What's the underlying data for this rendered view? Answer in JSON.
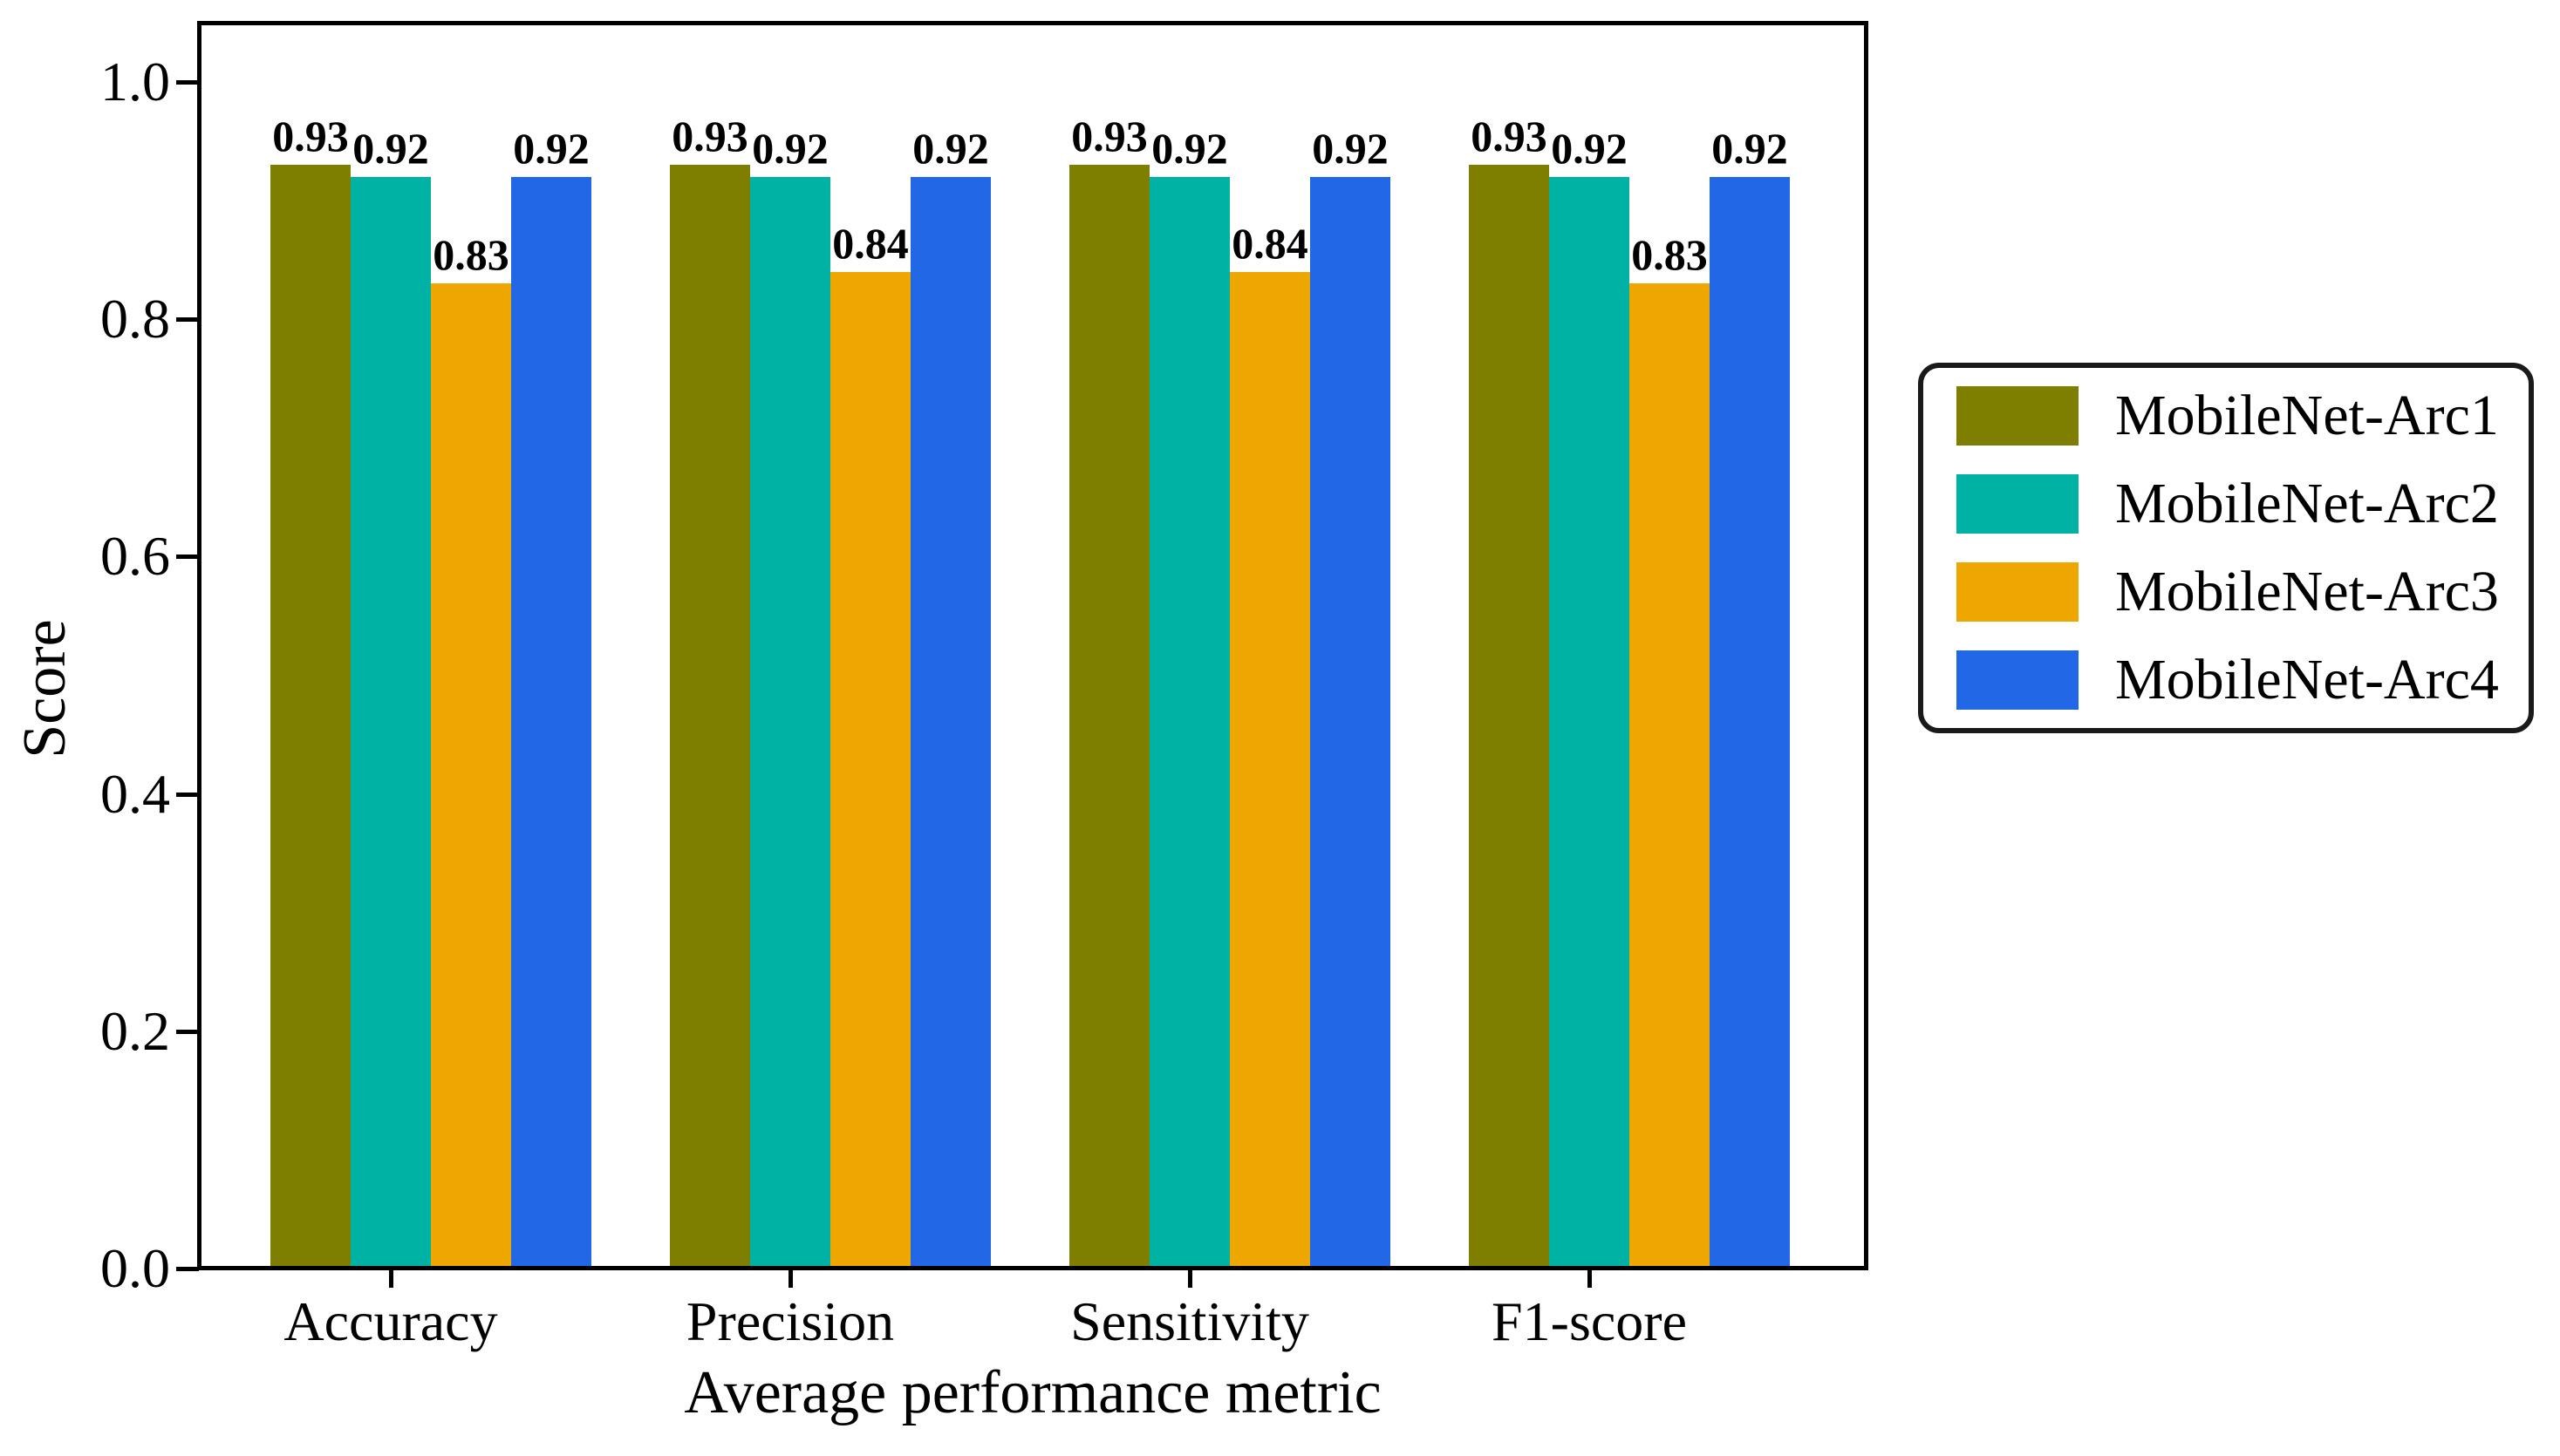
{
  "figure": {
    "background": "#ffffff",
    "text_color": "#000000",
    "axis_color": "#000000"
  },
  "chart_data": {
    "type": "bar",
    "title": "",
    "xlabel": "Average performance metric",
    "ylabel": "Score",
    "categories": [
      "Accuracy",
      "Precision",
      "Sensitivity",
      "F1-score"
    ],
    "series": [
      {
        "name": "MobileNet-Arc1",
        "color": "#7e7f00",
        "values": [
          0.93,
          0.93,
          0.93,
          0.93
        ]
      },
      {
        "name": "MobileNet-Arc2",
        "color": "#00b2a4",
        "values": [
          0.92,
          0.92,
          0.92,
          0.92
        ]
      },
      {
        "name": "MobileNet-Arc3",
        "color": "#eea700",
        "values": [
          0.83,
          0.84,
          0.84,
          0.83
        ]
      },
      {
        "name": "MobileNet-Arc4",
        "color": "#2267e6",
        "values": [
          0.92,
          0.92,
          0.92,
          0.92
        ]
      }
    ],
    "bar_value_labels": true,
    "value_label_decimals": 2,
    "yticks": [
      "0.0",
      "0.2",
      "0.4",
      "0.6",
      "0.8",
      "1.0"
    ],
    "ylim": [
      0,
      1.05
    ],
    "grid": false,
    "legend_position": "center-right"
  }
}
